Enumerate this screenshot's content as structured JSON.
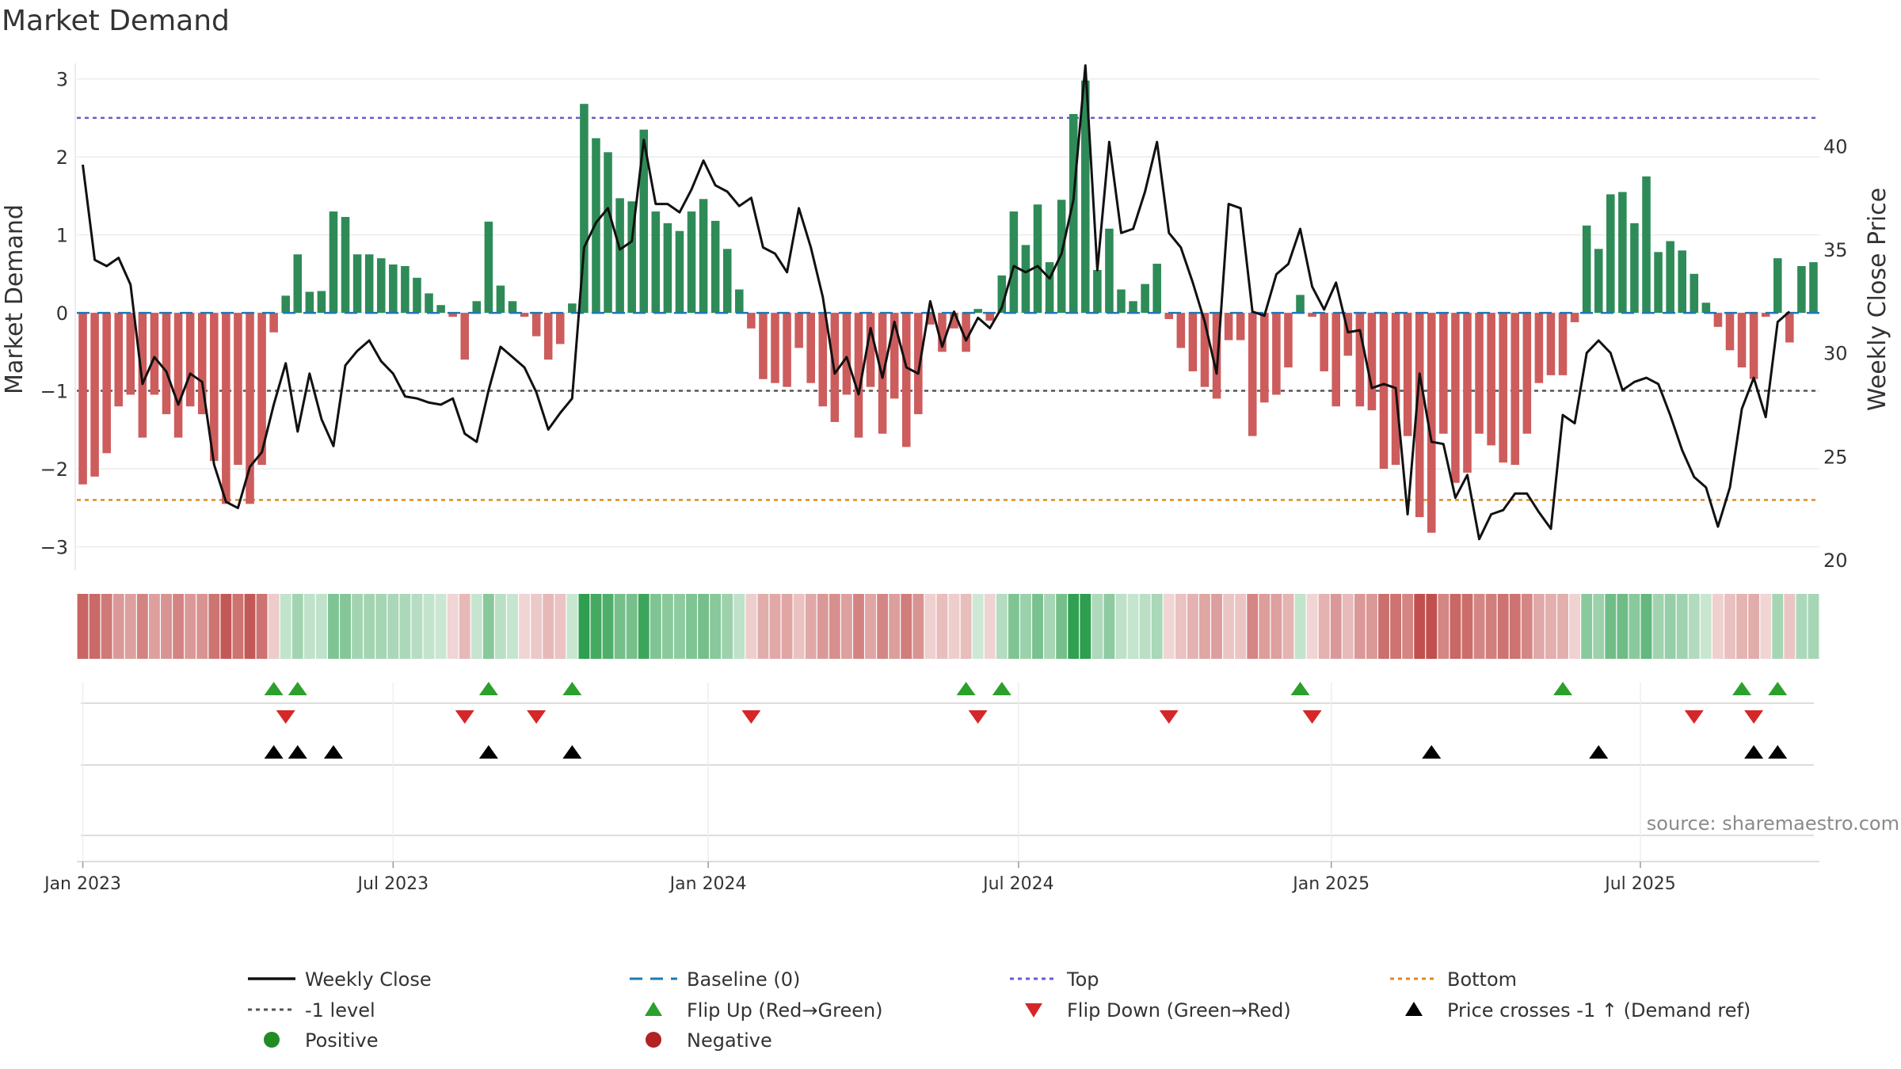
{
  "chart_data": {
    "type": "bar",
    "title": "Market Demand",
    "ylabel": "Market Demand",
    "ylabel_right": "Weekly Close Price",
    "source": "source: sharemaestro.com",
    "ylim": [
      -3.3,
      3.2
    ],
    "ylim_right": [
      19.5,
      44
    ],
    "yticks": [
      3,
      2,
      1,
      0,
      -1,
      -2,
      -3
    ],
    "yticks_labels": [
      "3",
      "2",
      "1",
      "0",
      "−1",
      "−2",
      "−3"
    ],
    "yticks_right": [
      40,
      35,
      30,
      25,
      20
    ],
    "x_ticks": [
      {
        "week": 0,
        "label": "Jan 2023"
      },
      {
        "week": 26,
        "label": "Jul 2023"
      },
      {
        "week": 52.4,
        "label": "Jan 2024"
      },
      {
        "week": 78.4,
        "label": "Jul 2024"
      },
      {
        "week": 104.6,
        "label": "Jan 2025"
      },
      {
        "week": 130.5,
        "label": "Jul 2025"
      }
    ],
    "reference_lines": {
      "baseline": 0,
      "minus_one": -1,
      "top": 2.5,
      "bottom": -2.4
    },
    "colors": {
      "positive": "#2e8b57",
      "negative": "#cd5c5c",
      "price": "#111111",
      "baseline": "#1f77b4",
      "top": "#6a5acd",
      "bottom": "#e08a1e",
      "minus_one": "#555555",
      "flip_up": "#2ca02c",
      "flip_down": "#d62728",
      "cross": "#000000",
      "pos_dot": "#228b22",
      "neg_dot": "#b22222"
    },
    "demand": [
      -2.2,
      -2.1,
      -1.8,
      -1.2,
      -1.05,
      -1.6,
      -1.05,
      -1.3,
      -1.6,
      -1.2,
      -1.3,
      -1.9,
      -2.45,
      -1.95,
      -2.45,
      -1.95,
      -0.25,
      0.22,
      0.75,
      0.27,
      0.28,
      1.3,
      1.23,
      0.75,
      0.75,
      0.7,
      0.62,
      0.6,
      0.45,
      0.25,
      0.1,
      -0.05,
      -0.6,
      0.15,
      1.17,
      0.35,
      0.15,
      -0.05,
      -0.3,
      -0.6,
      -0.4,
      0.12,
      2.68,
      2.24,
      2.06,
      1.47,
      1.43,
      2.35,
      1.3,
      1.15,
      1.05,
      1.3,
      1.46,
      1.18,
      0.82,
      0.3,
      -0.2,
      -0.85,
      -0.9,
      -0.95,
      -0.45,
      -0.9,
      -1.2,
      -1.4,
      -1.05,
      -1.6,
      -0.95,
      -1.55,
      -1.1,
      -1.72,
      -1.3,
      -0.15,
      -0.5,
      -0.2,
      -0.5,
      0.05,
      -0.1,
      0.48,
      1.3,
      0.87,
      1.39,
      0.65,
      1.45,
      2.55,
      2.98,
      0.55,
      1.08,
      0.3,
      0.15,
      0.37,
      0.63,
      -0.08,
      -0.45,
      -0.75,
      -0.95,
      -1.1,
      -0.35,
      -0.35,
      -1.58,
      -1.15,
      -1.05,
      -0.7,
      0.23,
      -0.05,
      -0.75,
      -1.2,
      -0.55,
      -1.2,
      -1.25,
      -2.0,
      -1.95,
      -1.58,
      -2.62,
      -2.82,
      -1.55,
      -2.18,
      -2.05,
      -1.55,
      -1.7,
      -1.92,
      -1.95,
      -1.55,
      -0.9,
      -0.8,
      -0.8,
      -0.12,
      1.12,
      0.82,
      1.52,
      1.55,
      1.15,
      1.75,
      0.78,
      0.92,
      0.8,
      0.5,
      0.13,
      -0.18,
      -0.48,
      -0.7,
      -0.85,
      -0.05,
      0.7,
      -0.38,
      0.6,
      0.65
    ],
    "price": [
      39.1,
      34.5,
      34.2,
      34.6,
      33.3,
      28.5,
      29.8,
      29.1,
      27.5,
      29.0,
      28.6,
      24.6,
      22.8,
      22.5,
      24.5,
      25.2,
      27.5,
      29.5,
      26.2,
      29.0,
      26.8,
      25.5,
      29.4,
      30.1,
      30.6,
      29.6,
      29.0,
      27.9,
      27.8,
      27.6,
      27.5,
      27.8,
      26.1,
      25.7,
      28.2,
      30.3,
      29.8,
      29.3,
      28.1,
      26.3,
      27.1,
      27.8,
      35.1,
      36.3,
      37.0,
      35.0,
      35.4,
      40.3,
      37.2,
      37.2,
      36.8,
      37.9,
      39.3,
      38.1,
      37.8,
      37.1,
      37.5,
      35.1,
      34.8,
      33.9,
      37.0,
      35.1,
      32.7,
      29.0,
      29.8,
      28.0,
      31.2,
      28.8,
      31.5,
      29.3,
      29.0,
      32.5,
      30.3,
      32.0,
      30.6,
      31.7,
      31.2,
      32.2,
      34.2,
      33.9,
      34.2,
      33.6,
      34.8,
      37.4,
      43.9,
      34.0,
      40.2,
      35.8,
      36.0,
      37.8,
      40.2,
      35.8,
      35.1,
      33.4,
      31.5,
      29.0,
      37.2,
      37.0,
      32.0,
      31.8,
      33.8,
      34.3,
      36.0,
      33.2,
      32.1,
      33.4,
      31.0,
      31.1,
      28.3,
      28.5,
      28.3,
      22.2,
      29.0,
      25.7,
      25.6,
      23.0,
      24.1,
      21.0,
      22.2,
      22.4,
      23.2,
      23.2,
      22.3,
      21.5,
      27.0,
      26.6,
      30.0,
      30.6,
      30.0,
      28.2,
      28.6,
      28.8,
      28.5,
      27.0,
      25.3,
      24.0,
      23.5,
      21.6,
      23.5,
      27.3,
      28.8,
      26.9,
      31.5,
      32.0
    ],
    "heat_colors": {
      "positive": "#2e9e4f",
      "negative": "#c0504d"
    },
    "heat_scale": 2.6,
    "flip_up_weeks": [
      16,
      18,
      34,
      41,
      74,
      77,
      102,
      124,
      139,
      142
    ],
    "flip_down_weeks": [
      17,
      32,
      38,
      56,
      75,
      91,
      103,
      135,
      140
    ],
    "price_cross_weeks": [
      16,
      18,
      21,
      34,
      41,
      113,
      127,
      140,
      142
    ]
  },
  "legend": {
    "weekly_close": "Weekly Close",
    "baseline": "Baseline (0)",
    "top": "Top",
    "bottom": "Bottom",
    "minus_one": "-1 level",
    "flip_up": "Flip Up (Red→Green)",
    "flip_down": "Flip Down (Green→Red)",
    "price_cross": "Price crosses -1 ↑ (Demand ref)",
    "positive": "Positive",
    "negative": "Negative"
  }
}
